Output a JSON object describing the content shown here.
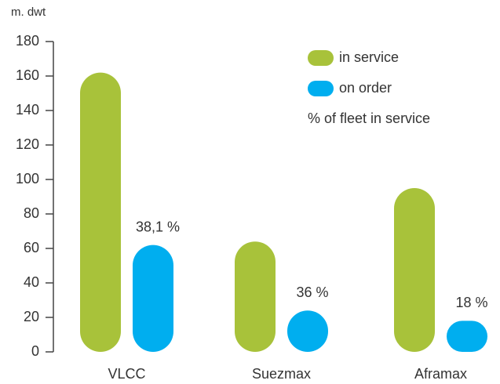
{
  "chart_data": {
    "type": "bar",
    "y_label": "m. dwt",
    "categories": [
      "VLCC",
      "Suezmax",
      "Aframax"
    ],
    "series": [
      {
        "name": "in service",
        "color": "#a8c23a",
        "values": [
          162,
          64,
          95
        ]
      },
      {
        "name": "on order",
        "color": "#00aeef",
        "values": [
          62,
          24,
          18
        ]
      },
      {
        "name": "% of fleet in service",
        "values": [
          38.1,
          36,
          18
        ],
        "value_labels": [
          "38,1 %",
          "36 %",
          "18 %"
        ]
      }
    ],
    "ylim": [
      0,
      180
    ],
    "yticks": [
      0,
      20,
      40,
      60,
      80,
      100,
      120,
      140,
      160,
      180
    ],
    "legend": "top-right"
  }
}
